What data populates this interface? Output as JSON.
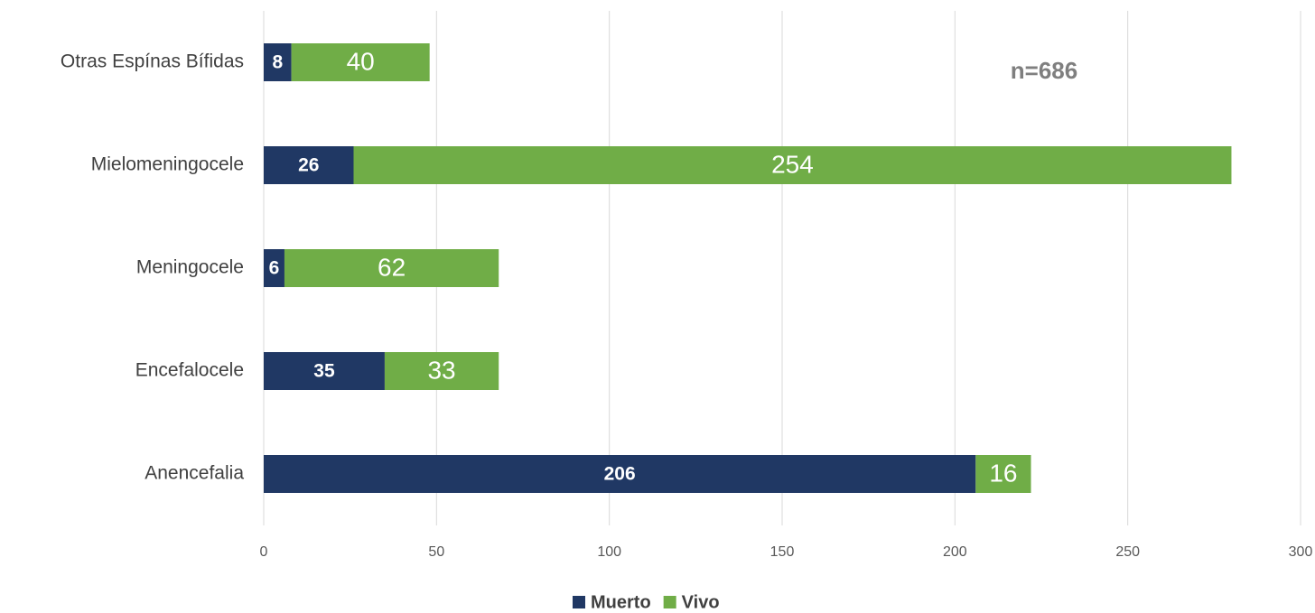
{
  "chart_data": {
    "type": "stacked_barh",
    "categories": [
      "Otras Espínas Bífidas",
      "Mielomeningocele",
      "Meningocele",
      "Encefalocele",
      "Anencefalia"
    ],
    "series": [
      {
        "name": "Muerto",
        "color": "#203864",
        "values": [
          8,
          26,
          6,
          35,
          206
        ]
      },
      {
        "name": "Vivo",
        "color": "#70ad47",
        "values": [
          40,
          254,
          62,
          33,
          16
        ]
      }
    ],
    "xlim": [
      0,
      300
    ],
    "xticks": [
      0,
      50,
      100,
      150,
      200,
      250,
      300
    ],
    "grid": true,
    "annotation": "n=686",
    "legend": "bottom"
  }
}
